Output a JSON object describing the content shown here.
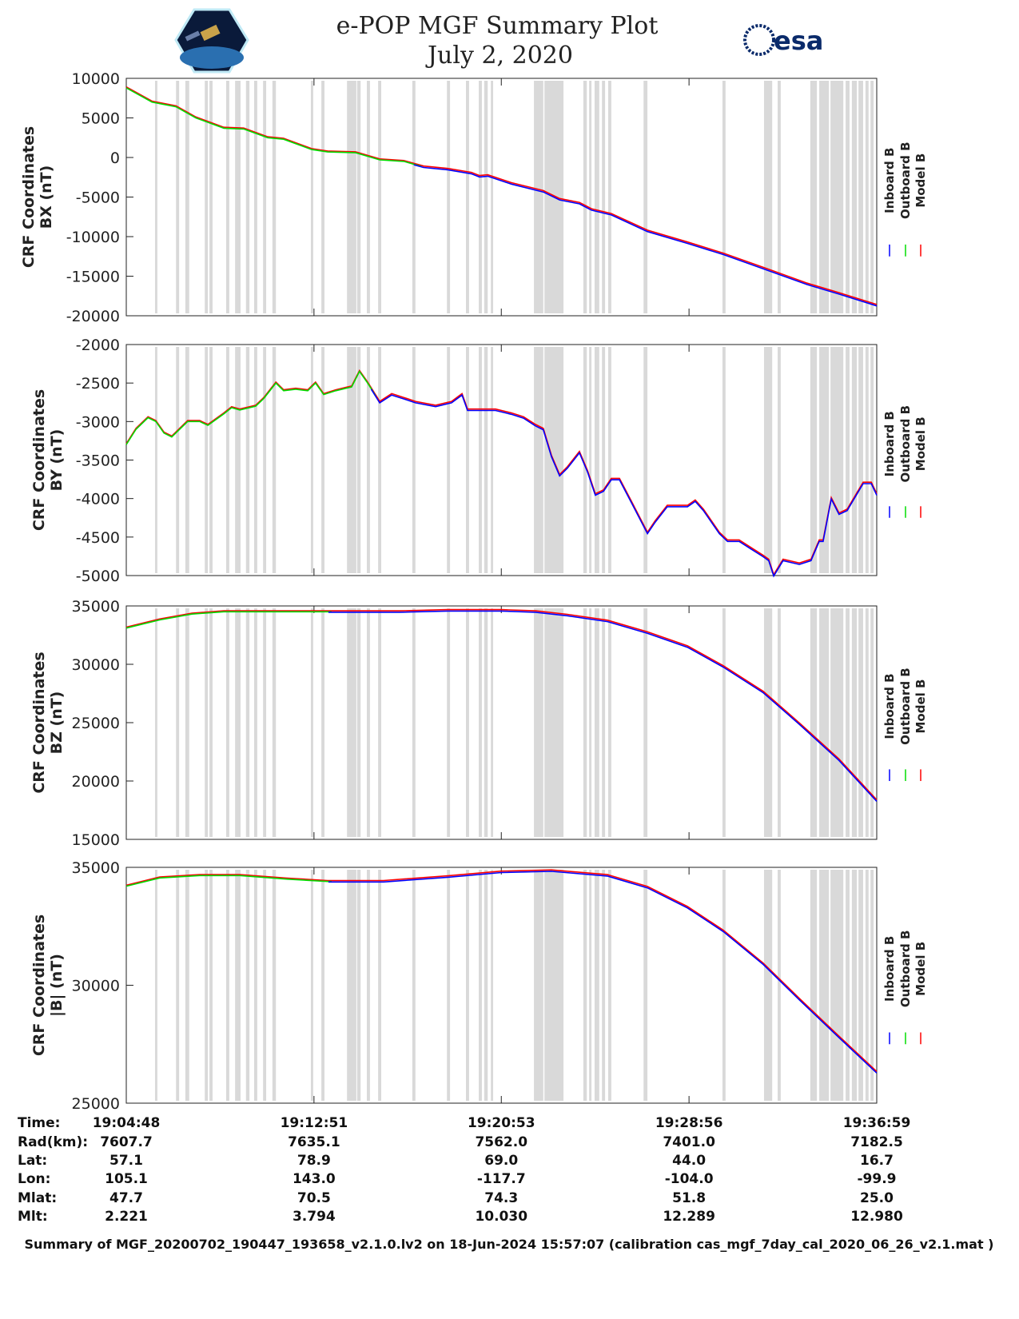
{
  "header": {
    "title": "e-POP MGF Summary Plot",
    "date": "July 2, 2020",
    "logo_left": "CASSIOPE",
    "logo_right": "esa"
  },
  "colors": {
    "inboard": "#0000ff",
    "outboard": "#00dd00",
    "model": "#ff0000",
    "band": "#d9d9d9"
  },
  "legend": [
    "Inboard B",
    "Outboard B",
    "Model B"
  ],
  "chart_data": {
    "type": "line",
    "x_unit": "seconds from 19:04:48",
    "xlim": [
      0,
      1931
    ],
    "x_ticks": [
      0,
      483,
      965,
      1448,
      1931
    ],
    "gap_bands": [
      [
        74,
        80
      ],
      [
        128,
        136
      ],
      [
        152,
        162
      ],
      [
        202,
        210
      ],
      [
        214,
        222
      ],
      [
        257,
        265
      ],
      [
        280,
        294
      ],
      [
        308,
        317
      ],
      [
        329,
        337
      ],
      [
        352,
        360
      ],
      [
        376,
        385
      ],
      [
        475,
        481
      ],
      [
        502,
        510
      ],
      [
        568,
        592
      ],
      [
        594,
        603
      ],
      [
        619,
        627
      ],
      [
        648,
        656
      ],
      [
        736,
        744
      ],
      [
        825,
        833
      ],
      [
        874,
        882
      ],
      [
        907,
        915
      ],
      [
        921,
        930
      ],
      [
        938,
        944
      ],
      [
        1049,
        1073
      ],
      [
        1076,
        1125
      ],
      [
        1176,
        1185
      ],
      [
        1191,
        1197
      ],
      [
        1205,
        1217
      ],
      [
        1224,
        1232
      ],
      [
        1240,
        1248
      ],
      [
        1331,
        1341
      ],
      [
        1534,
        1542
      ],
      [
        1641,
        1662
      ],
      [
        1676,
        1684
      ],
      [
        1760,
        1777
      ],
      [
        1783,
        1808
      ],
      [
        1812,
        1845
      ],
      [
        1851,
        1861
      ],
      [
        1867,
        1880
      ],
      [
        1884,
        1896
      ],
      [
        1902,
        1910
      ],
      [
        1915,
        1923
      ]
    ],
    "panels": [
      {
        "ylabel1": "CRF Coordinates",
        "ylabel2": "BX (nT)",
        "ylim": [
          -20000,
          10000
        ],
        "yticks": [
          "10000",
          "5000",
          "0",
          "-5000",
          "-10000",
          "-15000",
          "-20000"
        ],
        "outboard_range": [
          0,
          759
        ],
        "inboard_range": [
          740,
          1931
        ],
        "series": [
          [
            0,
            8800
          ],
          [
            66,
            7000
          ],
          [
            128,
            6400
          ],
          [
            179,
            5000
          ],
          [
            251,
            3700
          ],
          [
            302,
            3600
          ],
          [
            364,
            2500
          ],
          [
            405,
            2300
          ],
          [
            477,
            1000
          ],
          [
            518,
            700
          ],
          [
            590,
            600
          ],
          [
            652,
            -300
          ],
          [
            714,
            -500
          ],
          [
            765,
            -1200
          ],
          [
            827,
            -1500
          ],
          [
            888,
            -2000
          ],
          [
            909,
            -2400
          ],
          [
            930,
            -2300
          ],
          [
            991,
            -3300
          ],
          [
            1073,
            -4300
          ],
          [
            1115,
            -5300
          ],
          [
            1166,
            -5800
          ],
          [
            1197,
            -6600
          ],
          [
            1248,
            -7200
          ],
          [
            1341,
            -9300
          ],
          [
            1444,
            -10800
          ],
          [
            1536,
            -12200
          ],
          [
            1639,
            -14000
          ],
          [
            1752,
            -16000
          ],
          [
            1834,
            -17200
          ],
          [
            1931,
            -18700
          ]
        ]
      },
      {
        "ylabel1": "CRF Coordinates",
        "ylabel2": "BY (nT)",
        "ylim": [
          -5000,
          -2000
        ],
        "yticks": [
          "-2000",
          "-2500",
          "-3000",
          "-3500",
          "-4000",
          "-4500",
          "-5000"
        ],
        "outboard_range": [
          0,
          642
        ],
        "inboard_range": [
          630,
          1931
        ],
        "series": [
          [
            0,
            -3300
          ],
          [
            25,
            -3100
          ],
          [
            56,
            -2950
          ],
          [
            76,
            -3000
          ],
          [
            97,
            -3150
          ],
          [
            117,
            -3200
          ],
          [
            158,
            -3000
          ],
          [
            189,
            -3000
          ],
          [
            210,
            -3050
          ],
          [
            251,
            -2900
          ],
          [
            271,
            -2820
          ],
          [
            292,
            -2850
          ],
          [
            333,
            -2800
          ],
          [
            354,
            -2700
          ],
          [
            385,
            -2500
          ],
          [
            405,
            -2600
          ],
          [
            436,
            -2580
          ],
          [
            467,
            -2600
          ],
          [
            487,
            -2500
          ],
          [
            508,
            -2650
          ],
          [
            539,
            -2600
          ],
          [
            580,
            -2550
          ],
          [
            600,
            -2350
          ],
          [
            621,
            -2500
          ],
          [
            652,
            -2750
          ],
          [
            683,
            -2650
          ],
          [
            714,
            -2700
          ],
          [
            744,
            -2750
          ],
          [
            796,
            -2800
          ],
          [
            837,
            -2750
          ],
          [
            864,
            -2650
          ],
          [
            878,
            -2850
          ],
          [
            909,
            -2850
          ],
          [
            950,
            -2850
          ],
          [
            991,
            -2900
          ],
          [
            1022,
            -2950
          ],
          [
            1053,
            -3050
          ],
          [
            1073,
            -3100
          ],
          [
            1094,
            -3450
          ],
          [
            1115,
            -3700
          ],
          [
            1135,
            -3600
          ],
          [
            1166,
            -3400
          ],
          [
            1187,
            -3650
          ],
          [
            1207,
            -3950
          ],
          [
            1228,
            -3900
          ],
          [
            1248,
            -3750
          ],
          [
            1269,
            -3750
          ],
          [
            1300,
            -4050
          ],
          [
            1341,
            -4450
          ],
          [
            1361,
            -4300
          ],
          [
            1392,
            -4100
          ],
          [
            1444,
            -4100
          ],
          [
            1464,
            -4030
          ],
          [
            1485,
            -4150
          ],
          [
            1526,
            -4450
          ],
          [
            1547,
            -4550
          ],
          [
            1577,
            -4550
          ],
          [
            1608,
            -4650
          ],
          [
            1639,
            -4750
          ],
          [
            1653,
            -4800
          ],
          [
            1666,
            -5000
          ],
          [
            1690,
            -4800
          ],
          [
            1732,
            -4850
          ],
          [
            1762,
            -4800
          ],
          [
            1783,
            -4550
          ],
          [
            1793,
            -4550
          ],
          [
            1814,
            -4000
          ],
          [
            1834,
            -4200
          ],
          [
            1855,
            -4150
          ],
          [
            1896,
            -3800
          ],
          [
            1917,
            -3800
          ],
          [
            1931,
            -3950
          ]
        ]
      },
      {
        "ylabel1": "CRF Coordinates",
        "ylabel2": "BZ (nT)",
        "ylim": [
          15000,
          35000
        ],
        "yticks": [
          "35000",
          "30000",
          "25000",
          "20000",
          "15000"
        ],
        "outboard_range": [
          0,
          528
        ],
        "inboard_range": [
          520,
          1931
        ],
        "series": [
          [
            0,
            33100
          ],
          [
            86,
            33800
          ],
          [
            169,
            34300
          ],
          [
            251,
            34500
          ],
          [
            498,
            34500
          ],
          [
            703,
            34500
          ],
          [
            827,
            34600
          ],
          [
            965,
            34600
          ],
          [
            1053,
            34500
          ],
          [
            1135,
            34200
          ],
          [
            1238,
            33700
          ],
          [
            1341,
            32700
          ],
          [
            1444,
            31500
          ],
          [
            1536,
            29800
          ],
          [
            1639,
            27600
          ],
          [
            1732,
            24900
          ],
          [
            1834,
            21800
          ],
          [
            1931,
            18300
          ]
        ]
      },
      {
        "ylabel1": "CRF Coordinates",
        "ylabel2": "|B| (nT)",
        "ylim": [
          25000,
          35000
        ],
        "yticks": [
          "35000",
          "30000",
          "25000"
        ],
        "outboard_range": [
          0,
          528
        ],
        "inboard_range": [
          520,
          1931
        ],
        "series": [
          [
            0,
            34200
          ],
          [
            86,
            34550
          ],
          [
            189,
            34650
          ],
          [
            292,
            34650
          ],
          [
            415,
            34500
          ],
          [
            518,
            34400
          ],
          [
            662,
            34400
          ],
          [
            827,
            34600
          ],
          [
            965,
            34800
          ],
          [
            1094,
            34850
          ],
          [
            1238,
            34650
          ],
          [
            1341,
            34150
          ],
          [
            1444,
            33300
          ],
          [
            1536,
            32300
          ],
          [
            1639,
            30900
          ],
          [
            1732,
            29400
          ],
          [
            1834,
            27800
          ],
          [
            1931,
            26300
          ]
        ]
      }
    ]
  },
  "table": {
    "labels": [
      "Time:",
      "Rad(km):",
      "Lat:",
      "Lon:",
      "Mlat:",
      "Mlt:"
    ],
    "columns": [
      [
        "19:04:48",
        "7607.7",
        "57.1",
        "105.1",
        "47.7",
        "2.221"
      ],
      [
        "19:12:51",
        "7635.1",
        "78.9",
        "143.0",
        "70.5",
        "3.794"
      ],
      [
        "19:20:53",
        "7562.0",
        "69.0",
        "-117.7",
        "74.3",
        "10.030"
      ],
      [
        "19:28:56",
        "7401.0",
        "44.0",
        "-104.0",
        "51.8",
        "12.289"
      ],
      [
        "19:36:59",
        "7182.5",
        "16.7",
        "-99.9",
        "25.0",
        "12.980"
      ]
    ]
  },
  "footer": "Summary of MGF_20200702_190447_193658_v2.1.0.lv2 on 18-Jun-2024 15:57:07 (calibration cas_mgf_7day_cal_2020_06_26_v2.1.mat )"
}
